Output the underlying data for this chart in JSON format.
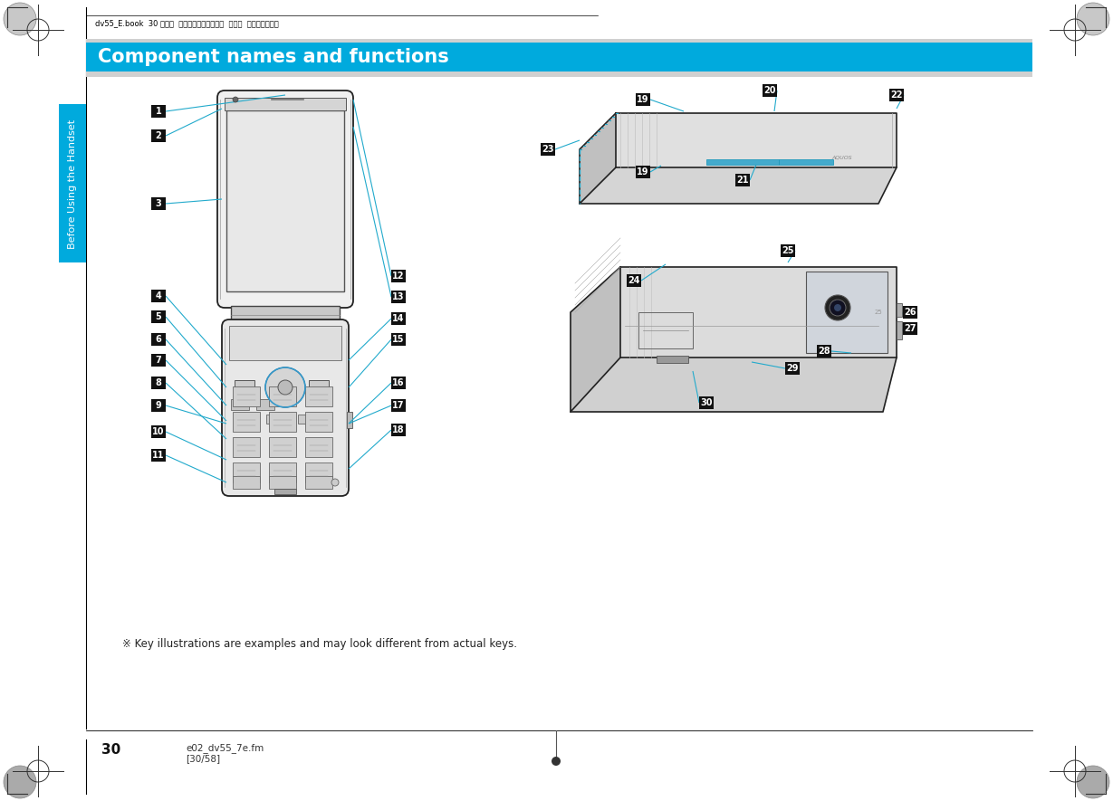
{
  "bg_color": "#ffffff",
  "header_text": "dv55_E.book  30 ページ  ２００８年４月１７日  木曜日  午後２時１２分",
  "footer_text_left": "e02_dv55_7e.fm\n[30/58]",
  "footer_page_num": "30",
  "section_title": "Component names and functions",
  "section_title_bg": "#00aadd",
  "section_title_color": "#ffffff",
  "side_tab_text": "Before Using the Handset",
  "side_tab_color": "#00aadd",
  "note_text": "※ Key illustrations are examples and may look different from actual keys.",
  "label_box_color": "#111111",
  "label_text_color": "#ffffff",
  "line_color": "#22aacc",
  "phone_line_color": "#222222",
  "dashed_line_color": "#22aacc",
  "gray_light": "#e8e8e8",
  "gray_mid": "#cccccc",
  "gray_dark": "#999999",
  "title_bar_gray": "#d0d0d0"
}
